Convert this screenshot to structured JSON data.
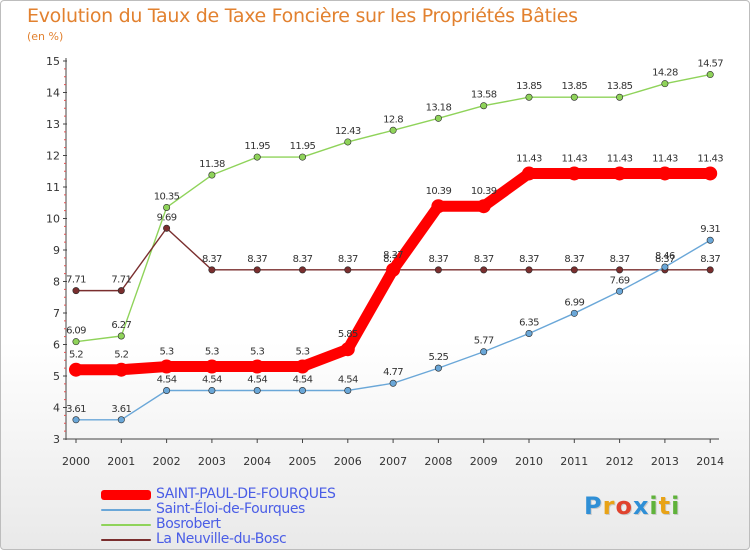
{
  "chart_data": {
    "type": "line",
    "title": "Evolution du Taux de Taxe Foncière sur les Propriétés Bâties",
    "ylabel": "(en %)",
    "xlabel": "",
    "x": [
      "2000",
      "2001",
      "2002",
      "2003",
      "2004",
      "2005",
      "2006",
      "2007",
      "2008",
      "2009",
      "2010",
      "2011",
      "2012",
      "2013",
      "2014"
    ],
    "ylim": [
      3,
      15
    ],
    "yticks": [
      "3",
      "4",
      "5",
      "6",
      "7",
      "8",
      "9",
      "10",
      "11",
      "12",
      "13",
      "14",
      "15"
    ],
    "grid": false,
    "series": [
      {
        "name": "SAINT-PAUL-DE-FOURQUES",
        "color": "#ff0000",
        "emphasis": true,
        "values": [
          5.2,
          5.2,
          5.3,
          5.3,
          5.3,
          5.3,
          5.85,
          8.37,
          10.39,
          10.39,
          11.43,
          11.43,
          11.43,
          11.43,
          11.43
        ],
        "labels": [
          "5.2",
          "5.2",
          "5.3",
          "5.3",
          "5.3",
          "5.3",
          "5.85",
          "8.37",
          "10.39",
          "10.39",
          "11.43",
          "11.43",
          "11.43",
          "11.43",
          "11.43"
        ]
      },
      {
        "name": "Saint-Éloi-de-Fourques",
        "color": "#6aa7d8",
        "emphasis": false,
        "values": [
          3.61,
          3.61,
          4.54,
          4.54,
          4.54,
          4.54,
          4.54,
          4.77,
          5.25,
          5.77,
          6.35,
          6.99,
          7.69,
          8.46,
          9.31
        ],
        "labels": [
          "3.61",
          "3.61",
          "4.54",
          "4.54",
          "4.54",
          "4.54",
          "4.54",
          "4.77",
          "5.25",
          "5.77",
          "6.35",
          "6.99",
          "7.69",
          "8.46",
          "9.31"
        ]
      },
      {
        "name": "Bosrobert",
        "color": "#8fd35a",
        "emphasis": false,
        "values": [
          6.09,
          6.27,
          10.35,
          11.38,
          11.95,
          11.95,
          12.43,
          12.8,
          13.18,
          13.58,
          13.85,
          13.85,
          13.85,
          14.28,
          14.57
        ],
        "labels": [
          "6.09",
          "6.27",
          "10.35",
          "11.38",
          "11.95",
          "11.95",
          "12.43",
          "12.8",
          "13.18",
          "13.58",
          "13.85",
          "13.85",
          "13.85",
          "14.28",
          "14.57"
        ]
      },
      {
        "name": "La Neuville-du-Bosc",
        "color": "#7a2e2e",
        "emphasis": false,
        "values": [
          7.71,
          7.71,
          9.69,
          8.37,
          8.37,
          8.37,
          8.37,
          8.37,
          8.37,
          8.37,
          8.37,
          8.37,
          8.37,
          8.37,
          8.37
        ],
        "labels": [
          "7.71",
          "7.71",
          "9.69",
          "8.37",
          "8.37",
          "8.37",
          "8.37",
          "8.37",
          "8.37",
          "8.37",
          "8.37",
          "8.37",
          "8.37",
          "8.37",
          "8.37"
        ]
      }
    ],
    "legend_position": "bottom-left"
  },
  "logo": {
    "letters": [
      "P",
      "r",
      "o",
      "x",
      "i",
      "t",
      "i"
    ]
  }
}
